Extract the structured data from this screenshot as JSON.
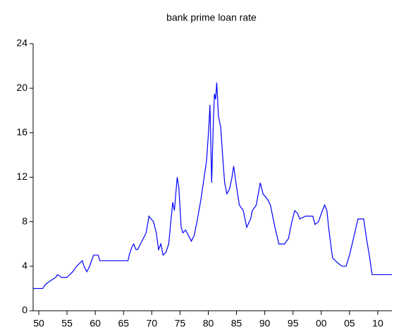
{
  "chart_data": {
    "type": "line",
    "title": "bank prime loan rate",
    "x": [
      1949,
      1950.7,
      1951,
      1951.5,
      1953,
      1953.3,
      1954,
      1955,
      1955.5,
      1956,
      1956.7,
      1957.7,
      1958,
      1958.5,
      1959,
      1959.7,
      1960.5,
      1960.8,
      1965.8,
      1966,
      1966.5,
      1966.8,
      1967.2,
      1967.5,
      1968,
      1968.5,
      1969,
      1969.5,
      1970.3,
      1970.8,
      1971.2,
      1971.6,
      1972,
      1972.5,
      1973,
      1973.7,
      1974,
      1974.5,
      1974.8,
      1975.2,
      1975.5,
      1976,
      1976.5,
      1977,
      1977.5,
      1978,
      1978.7,
      1979.2,
      1979.7,
      1980.1,
      1980.3,
      1980.6,
      1980.9,
      1981.1,
      1981.3,
      1981.5,
      1981.8,
      1982.2,
      1982.6,
      1982.9,
      1983.3,
      1983.8,
      1984.2,
      1984.5,
      1984.9,
      1985.5,
      1986.2,
      1986.8,
      1987.5,
      1987.8,
      1988.5,
      1989.2,
      1989.7,
      1990.5,
      1991,
      1991.8,
      1992.5,
      1993.5,
      1994.2,
      1994.8,
      1995.3,
      1995.8,
      1996.2,
      1997.2,
      1998.5,
      1998.9,
      1999.5,
      2000.2,
      2000.6,
      2001,
      2001.3,
      2001.8,
      2002,
      2003,
      2003.7,
      2004.4,
      2005,
      2005.7,
      2006.5,
      2007.5,
      2008,
      2008.5,
      2009,
      2012.5
    ],
    "series": [
      {
        "name": "bank prime loan rate",
        "color": "#0000ff",
        "values": [
          2.0,
          2.0,
          2.25,
          2.5,
          3.0,
          3.25,
          3.0,
          3.0,
          3.25,
          3.5,
          4.0,
          4.5,
          4.0,
          3.5,
          4.0,
          5.0,
          5.0,
          4.5,
          4.5,
          5.0,
          5.75,
          6.0,
          5.5,
          5.5,
          6.0,
          6.5,
          7.0,
          8.5,
          8.0,
          7.0,
          5.5,
          6.0,
          5.0,
          5.25,
          6.0,
          9.75,
          9.0,
          12.0,
          11.0,
          7.5,
          7.0,
          7.25,
          6.75,
          6.25,
          6.75,
          8.0,
          10.0,
          11.75,
          13.5,
          16.5,
          18.5,
          11.5,
          17.0,
          19.5,
          19.0,
          20.5,
          17.5,
          16.5,
          13.5,
          11.5,
          10.5,
          11.0,
          12.0,
          13.0,
          11.5,
          9.5,
          9.0,
          7.5,
          8.25,
          9.0,
          9.5,
          11.5,
          10.5,
          10.0,
          9.5,
          7.5,
          6.0,
          6.0,
          6.5,
          8.0,
          9.0,
          8.75,
          8.25,
          8.5,
          8.5,
          7.75,
          8.0,
          9.0,
          9.5,
          9.0,
          7.5,
          5.5,
          4.75,
          4.25,
          4.0,
          4.0,
          5.0,
          6.5,
          8.25,
          8.25,
          6.5,
          5.0,
          3.25,
          3.25
        ]
      }
    ],
    "xlim": [
      1949,
      2012.5
    ],
    "xticks": [
      {
        "value": 1950,
        "label": "50"
      },
      {
        "value": 1955,
        "label": "55"
      },
      {
        "value": 1960,
        "label": "60"
      },
      {
        "value": 1965,
        "label": "65"
      },
      {
        "value": 1970,
        "label": "70"
      },
      {
        "value": 1975,
        "label": "75"
      },
      {
        "value": 1980,
        "label": "80"
      },
      {
        "value": 1985,
        "label": "85"
      },
      {
        "value": 1990,
        "label": "90"
      },
      {
        "value": 1995,
        "label": "95"
      },
      {
        "value": 2000,
        "label": "00"
      },
      {
        "value": 2005,
        "label": "05"
      },
      {
        "value": 2010,
        "label": "10"
      }
    ],
    "ylim": [
      0,
      24
    ],
    "yticks": [
      0,
      4,
      8,
      12,
      16,
      20,
      24
    ],
    "grid": false
  }
}
